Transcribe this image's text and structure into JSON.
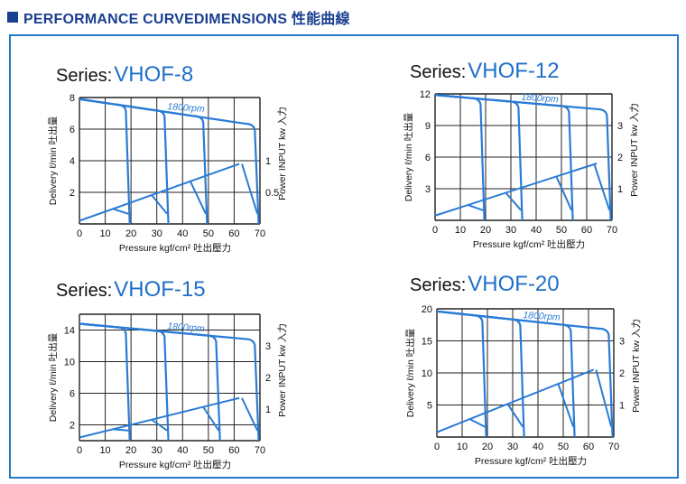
{
  "header": {
    "title": "PERFORMANCE CURVEDIMENSIONS 性能曲線"
  },
  "colors": {
    "curve": "#2a7bd6",
    "grid": "#222222",
    "series_text": "#1f6fc9",
    "header": "#1b3f8f"
  },
  "chart_data": [
    {
      "type": "line",
      "series_prefix": "Series:",
      "series_name": "VHOF-8",
      "xlabel": "Pressure kgf/cm² 吐出壓力",
      "ylabel": "Delivery ℓ/min 吐出量",
      "y2label": "Power INPUT kw 入力",
      "speed_label": "1800rpm",
      "xlim": [
        0,
        70
      ],
      "ylim": [
        0,
        8
      ],
      "xticks": [
        0,
        10,
        20,
        30,
        40,
        50,
        60,
        70
      ],
      "yticks": [
        2,
        4,
        6,
        8
      ],
      "y2lim": [
        0,
        2
      ],
      "y2ticks": [
        0.5,
        1
      ],
      "setpoints": [
        20,
        35,
        50,
        70
      ],
      "delivery": [
        [
          0,
          7.9
        ],
        [
          62,
          6.4
        ],
        [
          66,
          5.6
        ]
      ],
      "power": [
        [
          0,
          0.05
        ],
        [
          62,
          0.95
        ],
        [
          70,
          0.5
        ]
      ]
    },
    {
      "type": "line",
      "series_prefix": "Series:",
      "series_name": "VHOF-12",
      "xlabel": "Pressure kgf/cm² 吐出壓力",
      "ylabel": "Delivery ℓ/min 吐出量",
      "y2label": "Power INPUT kw 入力",
      "speed_label": "1800rpm",
      "xlim": [
        0,
        70
      ],
      "ylim": [
        0,
        12
      ],
      "xticks": [
        0,
        10,
        20,
        30,
        40,
        50,
        60,
        70
      ],
      "yticks": [
        3,
        6,
        9,
        12
      ],
      "y2lim": [
        0,
        4
      ],
      "y2ticks": [
        1,
        2,
        3
      ],
      "setpoints": [
        20,
        35,
        55,
        70
      ],
      "delivery": [
        [
          0,
          11.9
        ],
        [
          62,
          10.6
        ],
        [
          66,
          9.4
        ]
      ],
      "power": [
        [
          0,
          0.15
        ],
        [
          64,
          1.8
        ],
        [
          70,
          1.1
        ]
      ]
    },
    {
      "type": "line",
      "series_prefix": "Series:",
      "series_name": "VHOF-15",
      "xlabel": "Pressure kgf/cm² 吐出壓力",
      "ylabel": "Delivery ℓ/min 吐出量",
      "y2label": "Power INPUT kw 入力",
      "speed_label": "1800rpm",
      "xlim": [
        0,
        70
      ],
      "ylim": [
        0,
        16
      ],
      "xticks": [
        0,
        10,
        20,
        30,
        40,
        50,
        60,
        70
      ],
      "yticks": [
        2,
        6,
        10,
        14
      ],
      "y2lim": [
        0,
        4
      ],
      "y2ticks": [
        1,
        2,
        3
      ],
      "setpoints": [
        20,
        35,
        55,
        70
      ],
      "delivery": [
        [
          0,
          14.8
        ],
        [
          60,
          13.0
        ],
        [
          64,
          11.8
        ]
      ],
      "power": [
        [
          0,
          0.1
        ],
        [
          62,
          1.35
        ],
        [
          70,
          1.0
        ]
      ]
    },
    {
      "type": "line",
      "series_prefix": "Series:",
      "series_name": "VHOF-20",
      "xlabel": "Pressure kgf/cm² 吐出壓力",
      "ylabel": "Delivery ℓ/min 吐出量",
      "y2label": "Power INPUT kw 入力",
      "speed_label": "1800rpm",
      "xlim": [
        0,
        70
      ],
      "ylim": [
        0,
        20
      ],
      "xticks": [
        0,
        10,
        20,
        30,
        40,
        50,
        60,
        70
      ],
      "yticks": [
        5,
        10,
        15,
        20
      ],
      "y2lim": [
        0,
        4
      ],
      "y2ticks": [
        1,
        2,
        3
      ],
      "setpoints": [
        20,
        35,
        55,
        70
      ],
      "delivery": [
        [
          0,
          19.6
        ],
        [
          62,
          17.0
        ],
        [
          66,
          15.6
        ]
      ],
      "power": [
        [
          0,
          0.15
        ],
        [
          62,
          2.1
        ],
        [
          70,
          1.0
        ]
      ]
    }
  ]
}
